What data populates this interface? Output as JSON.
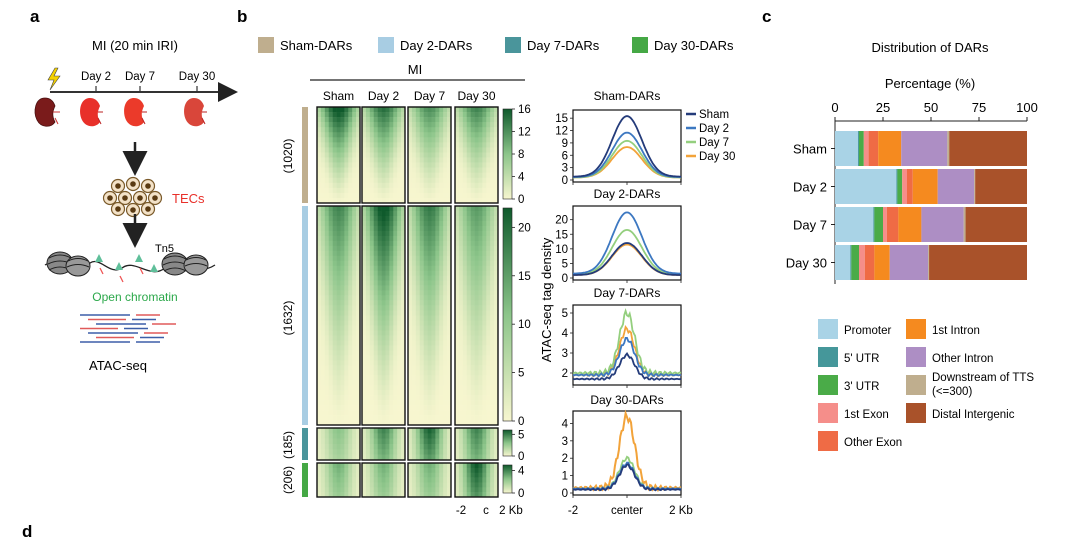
{
  "panels": {
    "a": "a",
    "b": "b",
    "c": "c",
    "d": "d"
  },
  "panel_a": {
    "title": "MI (20 min IRI)",
    "timepoints": [
      "Day 2",
      "Day 7",
      "Day 30"
    ],
    "cell_label": "TECs",
    "enzyme_label": "Tn5",
    "chromatin_label": "Open chromatin",
    "assay_label": "ATAC-seq",
    "colors": {
      "kidney_sham": "#8e1f1f",
      "kidney_mi": "#e8302a",
      "tec_label": "#e8302a",
      "chromatin_label": "#2ba84a"
    }
  },
  "panel_b": {
    "legend": [
      {
        "label": "Sham-DARs",
        "color": "#bfae8e"
      },
      {
        "label": "Day 2-DARs",
        "color": "#a8cde3"
      },
      {
        "label": "Day 7-DARs",
        "color": "#4a959b"
      },
      {
        "label": "Day 30-DARs",
        "color": "#45a845"
      }
    ],
    "group_title": "MI",
    "columns": [
      "Sham",
      "Day 2",
      "Day 7",
      "Day 30"
    ],
    "clusters": [
      {
        "count": "(1020)",
        "color": "#bfae8e",
        "scale_ticks": [
          "16",
          "12",
          "8",
          "4",
          "0"
        ],
        "scale_max": 16
      },
      {
        "count": "(1632)",
        "color": "#a8cde3",
        "scale_ticks": [
          "20",
          "15",
          "10",
          "5",
          "0"
        ],
        "scale_max": 22
      },
      {
        "count": "(185)",
        "color": "#4a959b",
        "scale_ticks": [
          "5",
          "0"
        ],
        "scale_max": 6
      },
      {
        "count": "(206)",
        "color": "#45a845",
        "scale_ticks": [
          "4",
          "0"
        ],
        "scale_max": 5
      }
    ],
    "heatmap_xaxis": [
      "-2",
      "c",
      "2 Kb"
    ],
    "heatmap_colors": {
      "low": "#f7f6cf",
      "mid": "#8cc58a",
      "high": "#0f5a2c"
    },
    "profile_ylabel": "ATAC-seq tag density",
    "profile_xaxis": [
      "-2",
      "center",
      "2 Kb"
    ],
    "profile_legend": [
      {
        "label": "Sham",
        "color": "#243b7a"
      },
      {
        "label": "Day 2",
        "color": "#3d78c1"
      },
      {
        "label": "Day 7",
        "color": "#94cf7e"
      },
      {
        "label": "Day 30",
        "color": "#f2a33a"
      }
    ]
  },
  "chart_data": [
    {
      "type": "line",
      "title": "Sham-DARs",
      "x": [
        -2,
        -1.5,
        -1,
        -0.5,
        0,
        0.5,
        1,
        1.5,
        2
      ],
      "xticks": [
        "-2",
        "center",
        "2 Kb"
      ],
      "yticks": [
        0,
        3,
        6,
        9,
        12,
        15
      ],
      "ylim": [
        0,
        16.5
      ],
      "series": [
        {
          "name": "Sham",
          "color": "#243b7a",
          "peak": 15.5,
          "base": 0.8
        },
        {
          "name": "Day 2",
          "color": "#3d78c1",
          "peak": 11.5,
          "base": 0.7
        },
        {
          "name": "Day 7",
          "color": "#94cf7e",
          "peak": 9.5,
          "base": 0.6
        },
        {
          "name": "Day 30",
          "color": "#f2a33a",
          "peak": 8.0,
          "base": 0.6
        }
      ],
      "legend_position": "right"
    },
    {
      "type": "line",
      "title": "Day 2-DARs",
      "x": [
        -2,
        -1.5,
        -1,
        -0.5,
        0,
        0.5,
        1,
        1.5,
        2
      ],
      "xticks": [
        "-2",
        "center",
        "2 Kb"
      ],
      "yticks": [
        0,
        5,
        10,
        15,
        20
      ],
      "ylim": [
        0,
        24
      ],
      "series": [
        {
          "name": "Sham",
          "color": "#243b7a",
          "peak": 12.0,
          "base": 1.0
        },
        {
          "name": "Day 2",
          "color": "#3d78c1",
          "peak": 22.5,
          "base": 1.5
        },
        {
          "name": "Day 7",
          "color": "#94cf7e",
          "peak": 16.5,
          "base": 1.2
        },
        {
          "name": "Day 30",
          "color": "#f2a33a",
          "peak": 11.5,
          "base": 1.0
        }
      ]
    },
    {
      "type": "line",
      "title": "Day 7-DARs",
      "x": [
        -2,
        -1.5,
        -1,
        -0.5,
        0,
        0.5,
        1,
        1.5,
        2
      ],
      "xticks": [
        "-2",
        "center",
        "2 Kb"
      ],
      "yticks": [
        2,
        3,
        4,
        5
      ],
      "ylim": [
        1.5,
        5.3
      ],
      "series": [
        {
          "name": "Sham",
          "color": "#243b7a",
          "peak": 2.9,
          "base": 1.7
        },
        {
          "name": "Day 2",
          "color": "#3d78c1",
          "peak": 3.7,
          "base": 1.9
        },
        {
          "name": "Day 7",
          "color": "#94cf7e",
          "peak": 5.0,
          "base": 2.0
        },
        {
          "name": "Day 30",
          "color": "#f2a33a",
          "peak": 4.2,
          "base": 1.9
        }
      ]
    },
    {
      "type": "line",
      "title": "Day 30-DARs",
      "x": [
        -2,
        -1.5,
        -1,
        -0.5,
        0,
        0.5,
        1,
        1.5,
        2
      ],
      "xticks": [
        "-2",
        "center",
        "2 Kb"
      ],
      "yticks": [
        0,
        1,
        2,
        3,
        4
      ],
      "ylim": [
        0,
        4.6
      ],
      "series": [
        {
          "name": "Sham",
          "color": "#243b7a",
          "peak": 1.6,
          "base": 0.2
        },
        {
          "name": "Day 2",
          "color": "#3d78c1",
          "peak": 1.7,
          "base": 0.25
        },
        {
          "name": "Day 7",
          "color": "#94cf7e",
          "peak": 2.0,
          "base": 0.25
        },
        {
          "name": "Day 30",
          "color": "#f2a33a",
          "peak": 4.4,
          "base": 0.3
        }
      ]
    },
    {
      "type": "bar",
      "orientation": "horizontal-stacked",
      "title": "Distribution of DARs",
      "xlabel": "Percentage (%)",
      "xlim": [
        0,
        100
      ],
      "xticks": [
        0,
        25,
        50,
        75,
        100
      ],
      "categories": [
        "Sham",
        "Day 2",
        "Day 7",
        "Day 30"
      ],
      "series": [
        {
          "name": "Promoter",
          "color": "#a9d3e6",
          "values": [
            12,
            32,
            20,
            8
          ]
        },
        {
          "name": "5' UTR",
          "color": "#45979a",
          "values": [
            0.5,
            0.5,
            0.5,
            0.5
          ]
        },
        {
          "name": "3' UTR",
          "color": "#4aab48",
          "values": [
            2.5,
            2.5,
            4.5,
            4
          ]
        },
        {
          "name": "1st Exon",
          "color": "#f58e8a",
          "values": [
            2.5,
            2.5,
            2,
            3
          ]
        },
        {
          "name": "Other Exon",
          "color": "#ef6b45",
          "values": [
            5,
            3,
            6,
            5
          ]
        },
        {
          "name": "1st Intron",
          "color": "#f58a1f",
          "values": [
            12,
            13,
            12,
            8
          ]
        },
        {
          "name": "Other Intron",
          "color": "#ad8ec4",
          "values": [
            24,
            19,
            22,
            20
          ]
        },
        {
          "name": "Downstream of TTS\n(<=300)",
          "color": "#bfae8e",
          "values": [
            1,
            0.5,
            1,
            0.5
          ]
        },
        {
          "name": "Distal Intergenic",
          "color": "#a9522a",
          "values": [
            40.5,
            27,
            32,
            51
          ]
        }
      ],
      "legend_position": "bottom"
    }
  ]
}
